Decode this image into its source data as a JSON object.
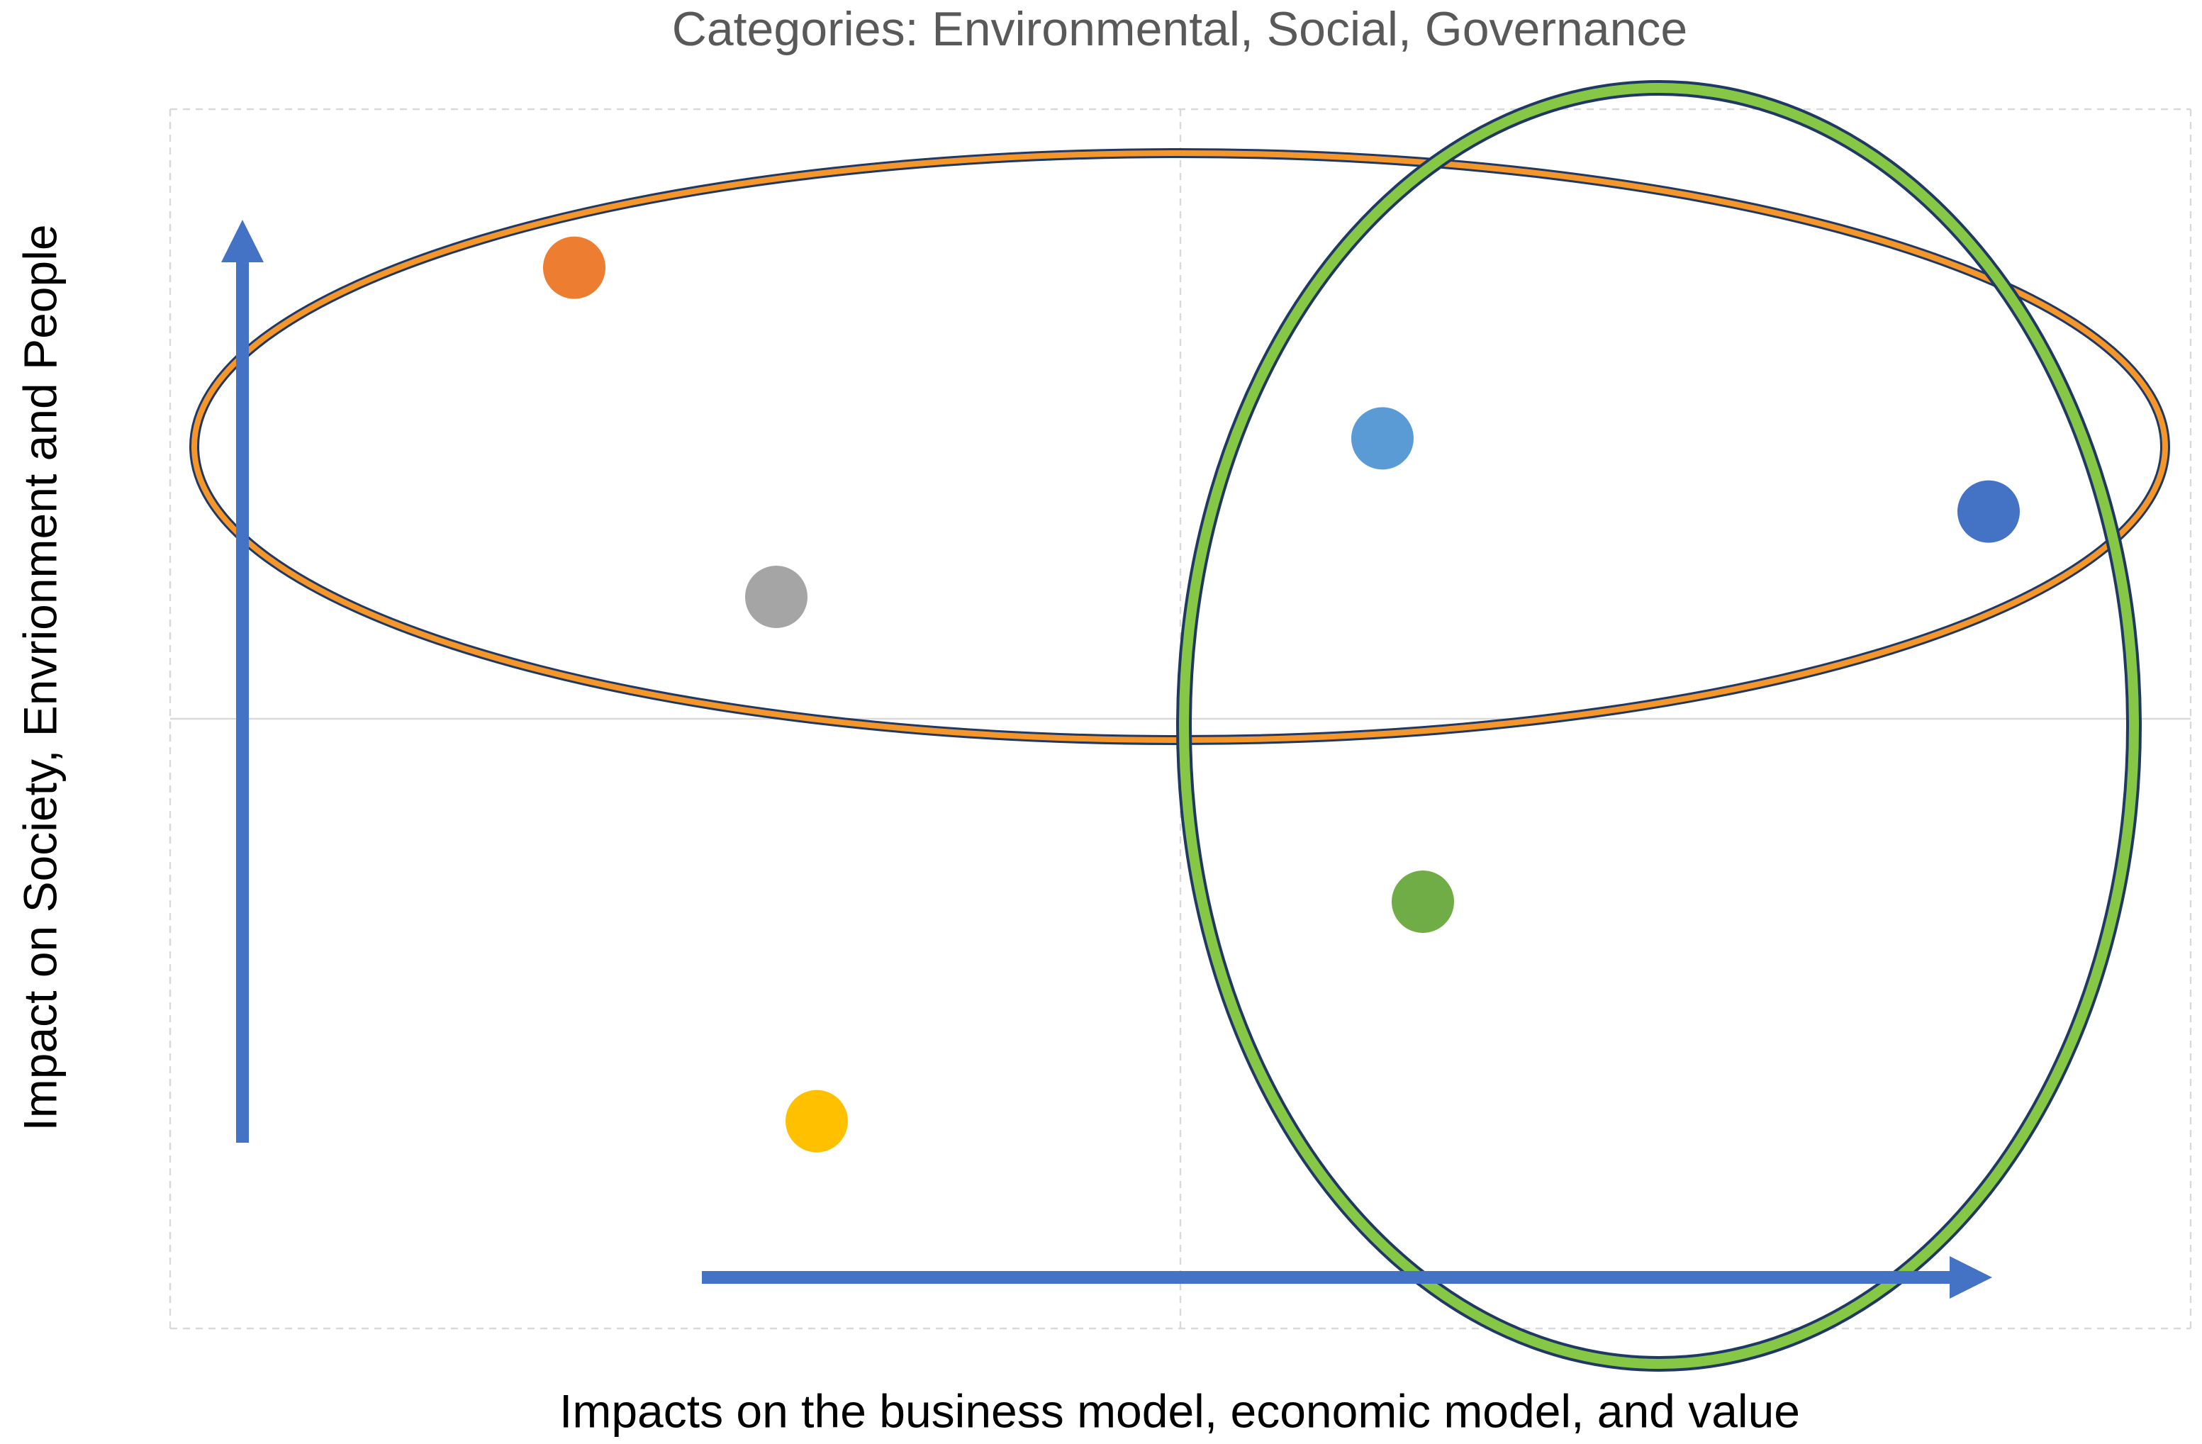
{
  "chart_data": {
    "type": "scatter",
    "title": "Categories: Environmental, Social, Governance",
    "x_label": "Impacts on the business model, economic model, and value",
    "y_label": "Impact on Society, Envrionment and People",
    "x": [
      2.0,
      3.0,
      6.0,
      9.0,
      6.2,
      3.2
    ],
    "values": [
      8.7,
      6.0,
      7.3,
      6.7,
      3.5,
      1.7
    ],
    "colors": [
      "#ed7d31",
      "#a5a5a5",
      "#5b9bd5",
      "#4472c4",
      "#70ad47",
      "#ffc000"
    ],
    "xlim": [
      0,
      10
    ],
    "ylim": [
      0,
      10
    ],
    "xticks": [
      0,
      5,
      10
    ],
    "yticks": [
      0,
      5,
      10
    ],
    "grid": true
  }
}
